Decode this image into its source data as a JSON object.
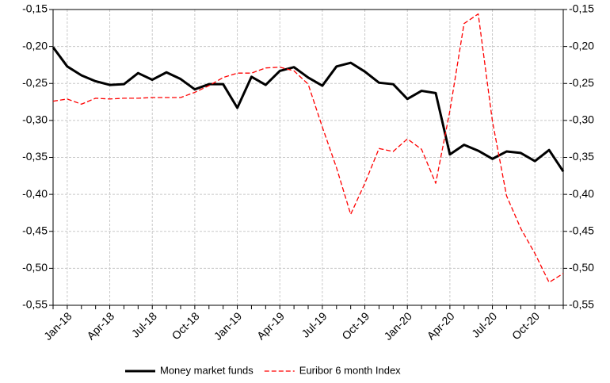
{
  "chart_data": {
    "type": "line",
    "categories": [
      null,
      "Jan-18",
      null,
      null,
      "Apr-18",
      null,
      null,
      "Jul-18",
      null,
      null,
      "Oct-18",
      null,
      null,
      "Jan-19",
      null,
      null,
      "Apr-19",
      null,
      null,
      "Jul-19",
      null,
      null,
      "Oct-19",
      null,
      null,
      "Jan-20",
      null,
      null,
      "Apr-20",
      null,
      null,
      "Jul-20",
      null,
      null,
      "Oct-20",
      null,
      null
    ],
    "series": [
      {
        "name": "Money market funds",
        "color": "#000000",
        "values": [
          -0.201,
          -0.227,
          -0.239,
          -0.247,
          -0.252,
          -0.251,
          -0.236,
          -0.245,
          -0.235,
          -0.244,
          -0.258,
          -0.251,
          -0.251,
          -0.283,
          -0.241,
          -0.252,
          -0.233,
          -0.228,
          -0.242,
          -0.253,
          -0.227,
          -0.222,
          -0.234,
          -0.249,
          -0.251,
          -0.271,
          -0.26,
          -0.263,
          -0.346,
          -0.333,
          -0.341,
          -0.352,
          -0.342,
          -0.344,
          -0.355,
          -0.34,
          -0.369
        ]
      },
      {
        "name": "Euribor 6 month Index",
        "color": "#ff0000",
        "values": [
          -0.274,
          -0.271,
          -0.278,
          -0.27,
          -0.271,
          -0.27,
          -0.27,
          -0.269,
          -0.269,
          -0.269,
          -0.262,
          -0.253,
          -0.242,
          -0.236,
          -0.236,
          -0.229,
          -0.228,
          -0.233,
          -0.251,
          -0.309,
          -0.364,
          -0.427,
          -0.385,
          -0.338,
          -0.342,
          -0.325,
          -0.339,
          -0.385,
          -0.287,
          -0.169,
          -0.156,
          -0.301,
          -0.402,
          -0.446,
          -0.48,
          -0.519,
          -0.507
        ]
      }
    ],
    "ylim": [
      -0.55,
      -0.15
    ],
    "yticks": [
      {
        "value": -0.55,
        "label": "-0,55"
      },
      {
        "value": -0.5,
        "label": "-0,50"
      },
      {
        "value": -0.45,
        "label": "-0,45"
      },
      {
        "value": -0.4,
        "label": "-0,40"
      },
      {
        "value": -0.35,
        "label": "-0,35"
      },
      {
        "value": -0.3,
        "label": "-0,30"
      },
      {
        "value": -0.25,
        "label": "-0,25"
      },
      {
        "value": -0.2,
        "label": "-0,20"
      },
      {
        "value": -0.15,
        "label": "-0,15"
      }
    ],
    "grid": true,
    "legend": "bottom"
  }
}
